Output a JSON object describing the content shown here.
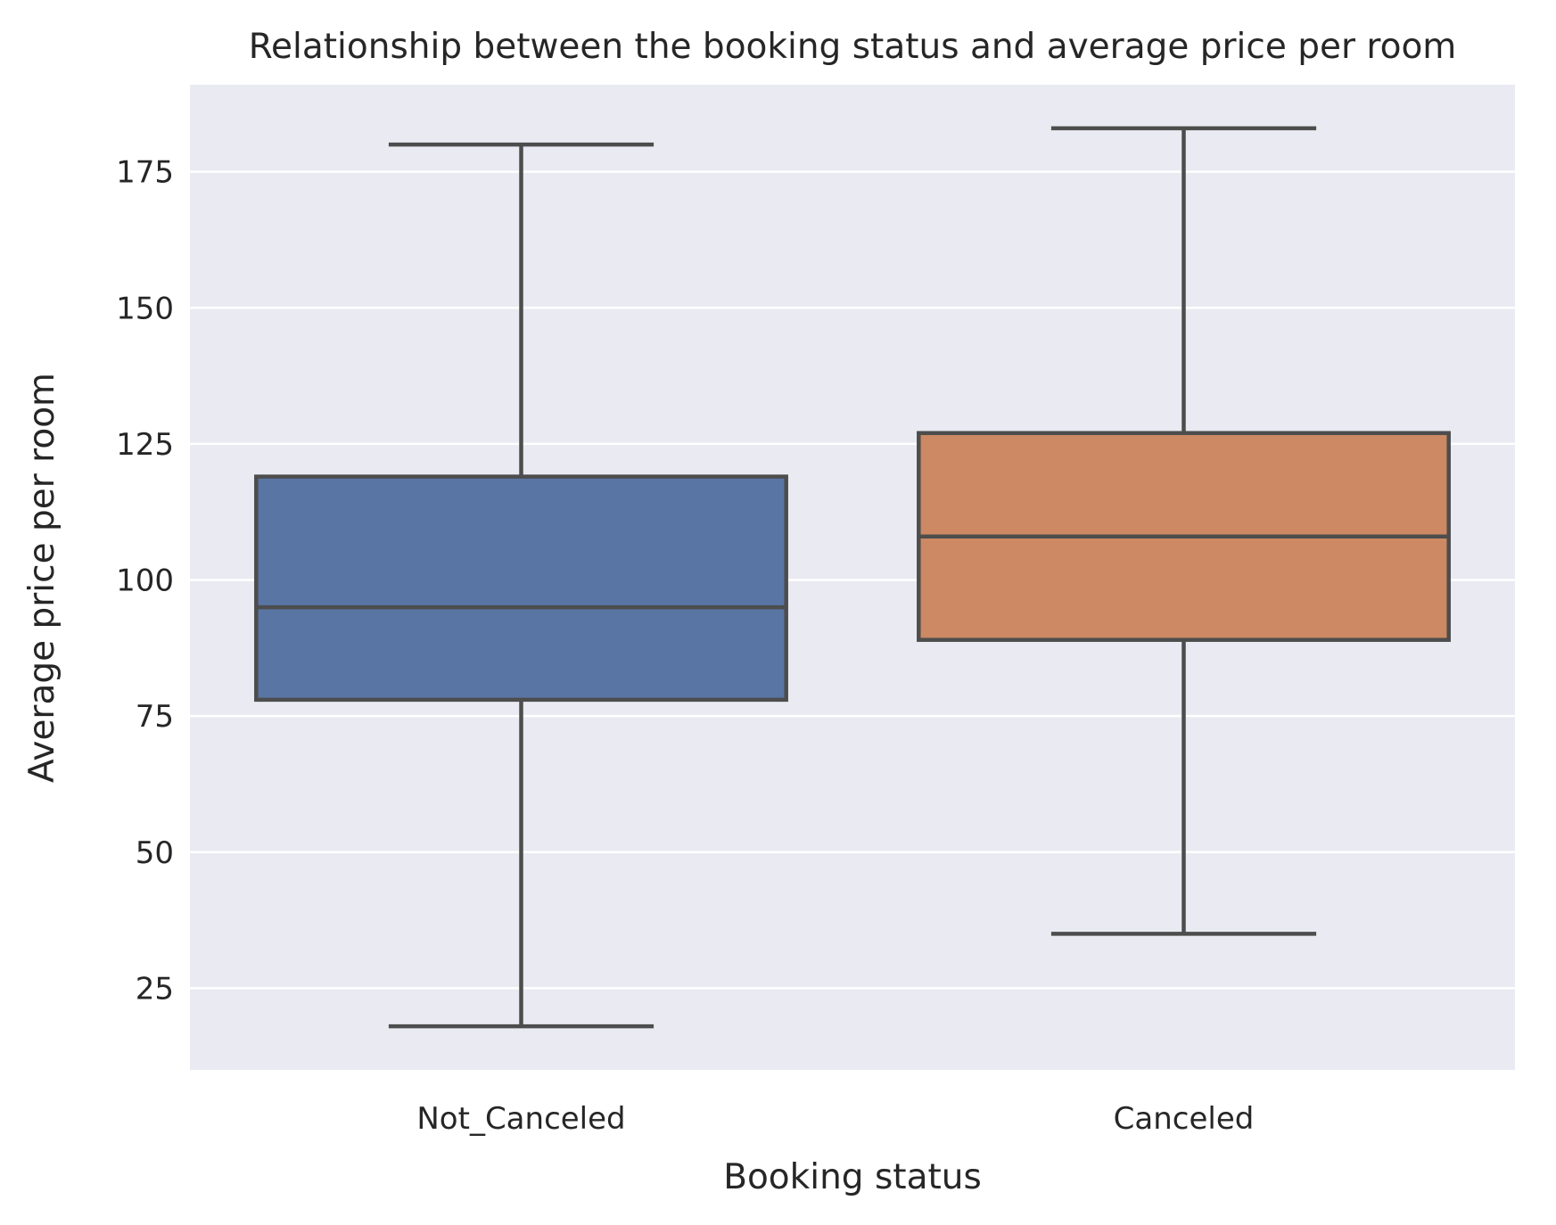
{
  "chart_data": {
    "type": "box",
    "title": "Relationship between the booking status and average price per room",
    "xlabel": "Booking status",
    "ylabel": "Average price per room",
    "ylim": [
      10,
      191
    ],
    "yticks": [
      25,
      50,
      75,
      100,
      125,
      150,
      175
    ],
    "grid": true,
    "categories": [
      "Not_Canceled",
      "Canceled"
    ],
    "boxes": [
      {
        "category": "Not_Canceled",
        "whisker_low": 18,
        "q1": 78,
        "median": 95,
        "q3": 119,
        "whisker_high": 180,
        "color": "#5975a4"
      },
      {
        "category": "Canceled",
        "whisker_low": 35,
        "q1": 89,
        "median": 108,
        "q3": 127,
        "whisker_high": 183,
        "color": "#cc8963"
      }
    ],
    "colors": {
      "plot_background": "#eaeaf2",
      "grid": "#ffffff",
      "outline": "#4d4d4d"
    }
  }
}
